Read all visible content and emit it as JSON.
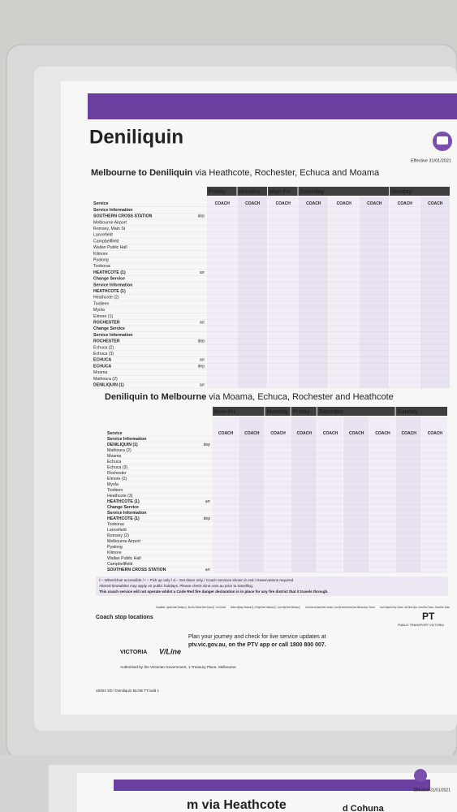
{
  "header": {
    "title": "Deniliquin",
    "effective": "Effective 31/01/2021"
  },
  "tables": [
    {
      "title": "Melbourne to Deniliquin",
      "via": "via Heathcote, Rochester, Echuca and Moama",
      "days": [
        {
          "label": "Friday",
          "services": [
            "COACH"
          ]
        },
        {
          "label": "Monday",
          "services": [
            "COACH"
          ]
        },
        {
          "label": "Mon-Fri",
          "services": [
            "COACH"
          ]
        },
        {
          "label": "Saturday",
          "services": [
            "COACH",
            "COACH",
            "COACH"
          ]
        },
        {
          "label": "Sunday",
          "services": [
            "COACH",
            "COACH"
          ]
        }
      ],
      "stops": [
        {
          "name": "Service"
        },
        {
          "name": "Service Information"
        },
        {
          "name": "SOUTHERN CROSS STATION",
          "mark": "dep"
        },
        {
          "name": "Melbourne Airport"
        },
        {
          "name": "Romsey, Main St"
        },
        {
          "name": "Lancefield"
        },
        {
          "name": "Campbellfield"
        },
        {
          "name": "Wallan Public Hall"
        },
        {
          "name": "Kilmore"
        },
        {
          "name": "Pyalong"
        },
        {
          "name": "Tooborac"
        },
        {
          "name": "HEATHCOTE (1)",
          "mark": "arr"
        },
        {
          "name": "Change Service"
        },
        {
          "name": "Service Information"
        },
        {
          "name": "HEATHCOTE (1)"
        },
        {
          "name": "Heathcote (2)"
        },
        {
          "name": "Toolleen"
        },
        {
          "name": "Myola"
        },
        {
          "name": "Elmore (1)"
        },
        {
          "name": "ROCHESTER",
          "mark": "arr"
        },
        {
          "name": "Change Service"
        },
        {
          "name": "Service Information"
        },
        {
          "name": "ROCHESTER",
          "mark": "dep"
        },
        {
          "name": "Echuca (2)"
        },
        {
          "name": "Echuca (3)"
        },
        {
          "name": "ECHUCA",
          "mark": "arr"
        },
        {
          "name": "ECHUCA",
          "mark": "dep"
        },
        {
          "name": "Moama"
        },
        {
          "name": "Mathoura (2)"
        },
        {
          "name": "DENILIQUIN (1)",
          "mark": "arr"
        }
      ]
    },
    {
      "title": "Deniliquin to Melbourne",
      "via": "via Moama, Echuca, Rochester and Heathcote",
      "days": [
        {
          "label": "Mon-Fri",
          "services": [
            "COACH",
            "COACH"
          ]
        },
        {
          "label": "Monday",
          "services": [
            "COACH"
          ]
        },
        {
          "label": "Friday",
          "services": [
            "COACH"
          ]
        },
        {
          "label": "Saturday",
          "services": [
            "COACH",
            "COACH",
            "COACH"
          ]
        },
        {
          "label": "Sunday",
          "services": [
            "COACH",
            "COACH"
          ]
        }
      ],
      "stops": [
        {
          "name": "Service"
        },
        {
          "name": "Service Information"
        },
        {
          "name": "DENILIQUIN (1)",
          "mark": "dep"
        },
        {
          "name": "Mathoura (2)"
        },
        {
          "name": "Moama"
        },
        {
          "name": "Echuca"
        },
        {
          "name": "Echuca (3)"
        },
        {
          "name": "Rochester"
        },
        {
          "name": "Elmore (2)"
        },
        {
          "name": "Myola"
        },
        {
          "name": "Toolleen"
        },
        {
          "name": "Heathcote (3)"
        },
        {
          "name": "HEATHCOTE (1)",
          "mark": "arr"
        },
        {
          "name": "Change Service"
        },
        {
          "name": "Service Information"
        },
        {
          "name": "HEATHCOTE (1)",
          "mark": "dep"
        },
        {
          "name": "Tooborac"
        },
        {
          "name": "Lancefield"
        },
        {
          "name": "Romsey (2)"
        },
        {
          "name": "Melbourne Airport"
        },
        {
          "name": "Pyalong"
        },
        {
          "name": "Kilmore"
        },
        {
          "name": "Wallan Public Hall"
        },
        {
          "name": "Campbellfield"
        },
        {
          "name": "SOUTHERN CROSS STATION",
          "mark": "arr"
        }
      ]
    }
  ],
  "footer": {
    "legend": "ℓ – Wheelchair accessible / r – Pick up only / d – Set down only / Coach services shown in red / Reservations required",
    "holidays": "Altered timetables may apply on public holidays. Please check vline.com.au prior to travelling.",
    "fire": "This coach service will not operate whilst a Code Red fire danger declaration is in place for any fire district that it travels through.",
    "coach_stop_title": "Coach stop locations",
    "coach_stops": [
      "Campbellfield – Opposite Smart / Deniliquin (1) – Bus Zone, Whitelock Street / Echuca (2) – Sun Gun Hotel",
      "Northern Highway / Heathcote (1) – 59 High Street / Heathcote (2) – Corner High Street / Mathoura (2)",
      "Corner Bourke and Sydney Streets / Lancefield – Corner High Street and Romsey Road / Melbourne Airport – Terminal 4",
      "Ground Transport Hub Bay 4 / Moama – Shire Offices / Myola – General Store / Tooborac – General Store / Toolleen"
    ],
    "plan": "Plan your journey and check for live service updates at",
    "contact": "ptv.vic.gov.au, on the PTV app or call 1800 800 007.",
    "authorised": "Authorised by the Victorian Government, 1 Treasury Place, Melbourne",
    "logo_vic": "VICTORIA",
    "logo_vline": "V/Line",
    "logo_ptv": "PT",
    "ptv_name": "PUBLIC TRANSPORT VICTORIA",
    "file": "15404 3/0 / Deniliquin BLOB TT.indd 1"
  },
  "next_poster": {
    "effective": "Effective 31/01/2021",
    "title": "m via Heathcote",
    "subtitle": "d Cohuna"
  }
}
